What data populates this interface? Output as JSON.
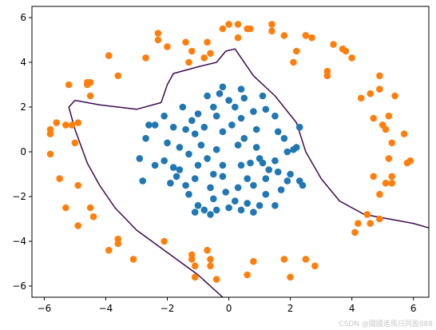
{
  "chart_data": {
    "type": "scatter",
    "title": "",
    "xlabel": "",
    "ylabel": "",
    "xlim": [
      -6.4,
      6.5
    ],
    "ylim": [
      -6.5,
      6.5
    ],
    "xticks": [
      -6,
      -4,
      -2,
      0,
      2,
      4,
      6
    ],
    "yticks": [
      -6,
      -4,
      -2,
      0,
      2,
      4,
      6
    ],
    "grid": false,
    "legend": "none",
    "series": [
      {
        "color": "#1f77b4",
        "marker": "circle",
        "points": [
          [
            -0.2,
            2.9
          ],
          [
            0.4,
            2.8
          ],
          [
            1.1,
            2.5
          ],
          [
            -0.7,
            2.5
          ],
          [
            -0.3,
            2.6
          ],
          [
            0.5,
            2.4
          ],
          [
            0.0,
            2.3
          ],
          [
            -1.5,
            2.0
          ],
          [
            -0.5,
            2.0
          ],
          [
            0.2,
            2.0
          ],
          [
            1.2,
            1.9
          ],
          [
            0.8,
            1.8
          ],
          [
            -1.0,
            1.7
          ],
          [
            -0.4,
            1.6
          ],
          [
            1.5,
            1.6
          ],
          [
            0.4,
            1.5
          ],
          [
            -2.1,
            1.6
          ],
          [
            -1.2,
            1.4
          ],
          [
            -1.8,
            1.1
          ],
          [
            -2.6,
            1.2
          ],
          [
            -2.4,
            1.2
          ],
          [
            -0.8,
            1.1
          ],
          [
            0.1,
            1.2
          ],
          [
            0.9,
            1.0
          ],
          [
            1.6,
            0.9
          ],
          [
            2.3,
            1.1
          ],
          [
            -0.2,
            0.9
          ],
          [
            -1.4,
            1.0
          ],
          [
            -1.1,
            0.8
          ],
          [
            0.5,
            0.6
          ],
          [
            -2.0,
            0.4
          ],
          [
            -0.9,
            0.3
          ],
          [
            1.8,
            0.6
          ],
          [
            0.3,
            0.3
          ],
          [
            -2.7,
            0.6
          ],
          [
            -1.6,
            0.2
          ],
          [
            -0.4,
            0.1
          ],
          [
            0.9,
            0.2
          ],
          [
            2.2,
            0.2
          ],
          [
            -2.9,
            -0.3
          ],
          [
            -1.3,
            -0.1
          ],
          [
            1.9,
            0.0
          ],
          [
            2.1,
            0.1
          ],
          [
            -0.7,
            -0.3
          ],
          [
            0.4,
            -0.6
          ],
          [
            1.5,
            -0.4
          ],
          [
            -2.1,
            -0.4
          ],
          [
            -1.8,
            -0.7
          ],
          [
            -1.0,
            -0.6
          ],
          [
            -0.2,
            -0.6
          ],
          [
            0.7,
            -0.5
          ],
          [
            1.3,
            -0.8
          ],
          [
            1.1,
            -0.5
          ],
          [
            1.0,
            -0.3
          ],
          [
            1.6,
            -0.9
          ],
          [
            2.0,
            -1.0
          ],
          [
            -1.6,
            -0.8
          ],
          [
            -2.4,
            -0.6
          ],
          [
            -0.5,
            -1.0
          ],
          [
            0.6,
            -1.2
          ],
          [
            1.2,
            -1.2
          ],
          [
            1.9,
            -1.3
          ],
          [
            2.3,
            -1.3
          ],
          [
            -2.8,
            -1.3
          ],
          [
            -1.1,
            -1.2
          ],
          [
            -0.2,
            -1.1
          ],
          [
            -1.4,
            -1.5
          ],
          [
            1.7,
            -1.7
          ],
          [
            0.8,
            -1.5
          ],
          [
            2.4,
            -1.5
          ],
          [
            -1.9,
            -1.4
          ],
          [
            -0.6,
            -1.6
          ],
          [
            1.2,
            -1.9
          ],
          [
            -1.3,
            -1.9
          ],
          [
            0.2,
            -2.2
          ],
          [
            -0.5,
            -2.1
          ],
          [
            0.6,
            -2.3
          ],
          [
            -1.0,
            -2.4
          ],
          [
            -0.8,
            -2.6
          ],
          [
            1.0,
            -2.4
          ],
          [
            1.5,
            -2.4
          ],
          [
            0.0,
            -2.5
          ],
          [
            -1.1,
            -2.7
          ],
          [
            -0.4,
            -2.6
          ],
          [
            0.4,
            -2.6
          ],
          [
            -0.6,
            -2.8
          ],
          [
            0.8,
            -2.7
          ],
          [
            -0.1,
            -1.8
          ],
          [
            0.3,
            -1.6
          ],
          [
            -1.7,
            -1.1
          ]
        ]
      },
      {
        "color": "#ff7f0e",
        "marker": "circle",
        "points": [
          [
            0.0,
            5.7
          ],
          [
            0.3,
            5.7
          ],
          [
            1.4,
            5.7
          ],
          [
            -0.2,
            5.5
          ],
          [
            0.6,
            5.5
          ],
          [
            0.7,
            5.5
          ],
          [
            0.3,
            5.1
          ],
          [
            1.4,
            5.4
          ],
          [
            1.8,
            5.2
          ],
          [
            2.5,
            5.2
          ],
          [
            2.7,
            5.1
          ],
          [
            -2.3,
            5.3
          ],
          [
            -2.3,
            5.0
          ],
          [
            -1.4,
            4.9
          ],
          [
            -2.0,
            4.7
          ],
          [
            -0.7,
            4.9
          ],
          [
            -1.2,
            4.5
          ],
          [
            -0.6,
            4.4
          ],
          [
            -1.3,
            4.0
          ],
          [
            -3.9,
            4.3
          ],
          [
            -2.7,
            4.2
          ],
          [
            -0.8,
            4.2
          ],
          [
            2.2,
            4.5
          ],
          [
            2.1,
            4.0
          ],
          [
            3.4,
            4.8
          ],
          [
            3.7,
            4.6
          ],
          [
            3.8,
            4.5
          ],
          [
            4.0,
            4.2
          ],
          [
            3.2,
            3.6
          ],
          [
            3.2,
            3.4
          ],
          [
            -3.6,
            3.4
          ],
          [
            -4.6,
            3.1
          ],
          [
            -4.6,
            3.0
          ],
          [
            -4.5,
            3.1
          ],
          [
            -5.2,
            3.0
          ],
          [
            -4.5,
            2.5
          ],
          [
            4.9,
            3.4
          ],
          [
            4.9,
            2.8
          ],
          [
            5.4,
            2.5
          ],
          [
            4.6,
            2.6
          ],
          [
            4.3,
            2.4
          ],
          [
            -5.8,
            1.0
          ],
          [
            -5.6,
            1.3
          ],
          [
            -5.3,
            1.2
          ],
          [
            -5.1,
            1.2
          ],
          [
            -4.9,
            1.3
          ],
          [
            5.2,
            1.6
          ],
          [
            4.7,
            1.5
          ],
          [
            5.1,
            1.0
          ],
          [
            5.0,
            1.2
          ],
          [
            5.3,
            0.4
          ],
          [
            5.7,
            0.8
          ],
          [
            -5.8,
            0.8
          ],
          [
            -5.0,
            0.4
          ],
          [
            -5.8,
            -0.1
          ],
          [
            5.2,
            -0.3
          ],
          [
            5.9,
            -0.4
          ],
          [
            5.8,
            -0.5
          ],
          [
            4.7,
            -1.1
          ],
          [
            5.3,
            -1.1
          ],
          [
            -5.5,
            -1.2
          ],
          [
            5.1,
            -1.4
          ],
          [
            5.3,
            -1.4
          ],
          [
            -4.9,
            -1.5
          ],
          [
            4.9,
            -1.9
          ],
          [
            -5.3,
            -2.5
          ],
          [
            -4.5,
            -2.5
          ],
          [
            4.5,
            -2.8
          ],
          [
            -4.4,
            -2.9
          ],
          [
            -4.9,
            -3.3
          ],
          [
            4.9,
            -3.0
          ],
          [
            4.2,
            -3.2
          ],
          [
            4.6,
            -3.2
          ],
          [
            -3.6,
            -3.9
          ],
          [
            -3.9,
            -4.4
          ],
          [
            -3.6,
            -4.1
          ],
          [
            -2.1,
            -4.0
          ],
          [
            4.1,
            -3.6
          ],
          [
            -3.1,
            -4.8
          ],
          [
            -1.2,
            -4.6
          ],
          [
            -1.2,
            -4.8
          ],
          [
            -1.1,
            -5.1
          ],
          [
            -0.7,
            -4.4
          ],
          [
            -0.6,
            -4.8
          ],
          [
            -0.6,
            -5.1
          ],
          [
            0.8,
            -4.9
          ],
          [
            1.8,
            -4.8
          ],
          [
            2.8,
            -5.1
          ],
          [
            -1.1,
            -5.6
          ],
          [
            -0.4,
            -5.7
          ],
          [
            0.6,
            -5.5
          ],
          [
            2.0,
            -5.6
          ],
          [
            2.5,
            -4.8
          ]
        ]
      }
    ],
    "decision_boundary": {
      "color": "#3b0a50",
      "points": [
        [
          -0.2,
          -6.5
        ],
        [
          -1.0,
          -5.5
        ],
        [
          -2.0,
          -4.5
        ],
        [
          -3.0,
          -3.5
        ],
        [
          -3.7,
          -2.5
        ],
        [
          -4.2,
          -1.5
        ],
        [
          -4.6,
          -0.5
        ],
        [
          -5.0,
          1.0
        ],
        [
          -5.2,
          2.0
        ],
        [
          -5.0,
          2.3
        ],
        [
          -4.2,
          2.1
        ],
        [
          -3.0,
          1.9
        ],
        [
          -2.2,
          2.2
        ],
        [
          -2.0,
          3.0
        ],
        [
          -1.8,
          3.5
        ],
        [
          -1.0,
          3.8
        ],
        [
          -0.4,
          4.0
        ],
        [
          -0.1,
          4.5
        ],
        [
          0.2,
          4.6
        ],
        [
          0.4,
          4.2
        ],
        [
          0.8,
          3.4
        ],
        [
          1.5,
          2.5
        ],
        [
          2.2,
          1.3
        ],
        [
          2.5,
          0.0
        ],
        [
          3.0,
          -1.2
        ],
        [
          3.6,
          -2.2
        ],
        [
          4.4,
          -2.8
        ],
        [
          5.2,
          -3.0
        ],
        [
          6.0,
          -3.2
        ],
        [
          6.5,
          -3.4
        ]
      ]
    }
  },
  "watermark": "CSDN @國國進風日同盈888"
}
